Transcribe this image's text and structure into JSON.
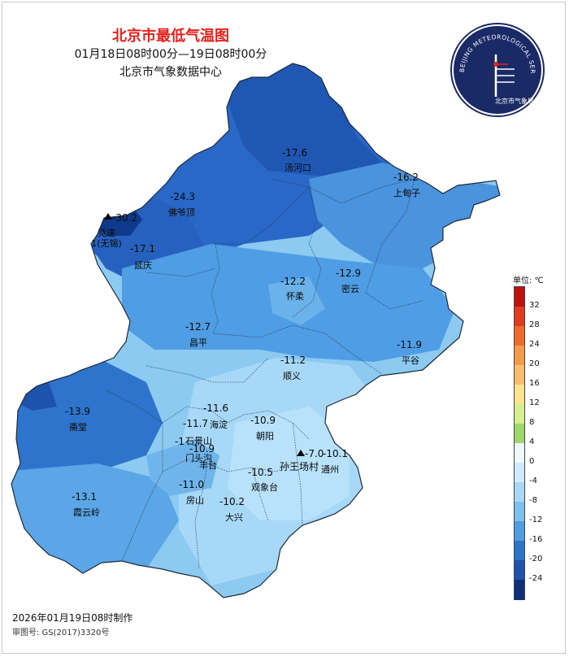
{
  "title": "北京市最低气温图",
  "period": "01月18日08时00分—19日08时00分",
  "center": "北京市气象数据中心",
  "logo": {
    "arc_text": "BEIJING METEOROLOGICAL SERVICE",
    "cn_text": "北京市气象局",
    "color": "#1a2a66"
  },
  "legend": {
    "unit": "单位: ℃",
    "bins": [
      {
        "label": "32",
        "color": "#c40f0f"
      },
      {
        "label": "28",
        "color": "#e63a1e"
      },
      {
        "label": "24",
        "color": "#f26a2b"
      },
      {
        "label": "20",
        "color": "#f79a48"
      },
      {
        "label": "16",
        "color": "#fbbd6a"
      },
      {
        "label": "12",
        "color": "#fde48a"
      },
      {
        "label": "8",
        "color": "#d8ef8f"
      },
      {
        "label": "4",
        "color": "#9ed86b"
      },
      {
        "label": "0",
        "color": "#eef8ff"
      },
      {
        "label": "-4",
        "color": "#cfeaff"
      },
      {
        "label": "-8",
        "color": "#a8d8f7"
      },
      {
        "label": "-12",
        "color": "#7cc0ef"
      },
      {
        "label": "-16",
        "color": "#4f9de4"
      },
      {
        "label": "-20",
        "color": "#2e74cd"
      },
      {
        "label": "-24",
        "color": "#1d52ad"
      },
      {
        "label": "",
        "color": "#0d2e7a"
      }
    ]
  },
  "stations": [
    {
      "value": "-17.6",
      "name": "汤河口"
    },
    {
      "value": "-16.2",
      "name": "上甸子"
    },
    {
      "value": "-24.3",
      "name": "佛爷顶"
    },
    {
      "value": "-30.2",
      "name": "竞速1(无锡)"
    },
    {
      "value": "-17.1",
      "name": "延庆"
    },
    {
      "value": "-12.2",
      "name": "怀柔"
    },
    {
      "value": "-12.9",
      "name": "密云"
    },
    {
      "value": "-12.7",
      "name": "昌平"
    },
    {
      "value": "-11.2",
      "name": "顺义"
    },
    {
      "value": "-11.9",
      "name": "平谷"
    },
    {
      "value": "-13.9",
      "name": "斋堂"
    },
    {
      "value": "-11.6",
      "name": ""
    },
    {
      "value": "-11.7",
      "name": "海淀"
    },
    {
      "value": "-10.9",
      "name": "朝阳"
    },
    {
      "value": "-1",
      "name": "石景山"
    },
    {
      "value": "-10.9",
      "name": "门头沟"
    },
    {
      "value": "",
      "name": "丰台"
    },
    {
      "value": "-7.0",
      "name": "孙王场村"
    },
    {
      "value": "-10.1",
      "name": "通州"
    },
    {
      "value": "-10.5",
      "name": "观象台"
    },
    {
      "value": "-11.0",
      "name": "房山"
    },
    {
      "value": "-10.2",
      "name": "大兴"
    },
    {
      "value": "-13.1",
      "name": "霞云岭"
    }
  ],
  "footer": {
    "made": "2026年01月19日08时制作",
    "approval": "审图号: GS(2017)3320号"
  }
}
